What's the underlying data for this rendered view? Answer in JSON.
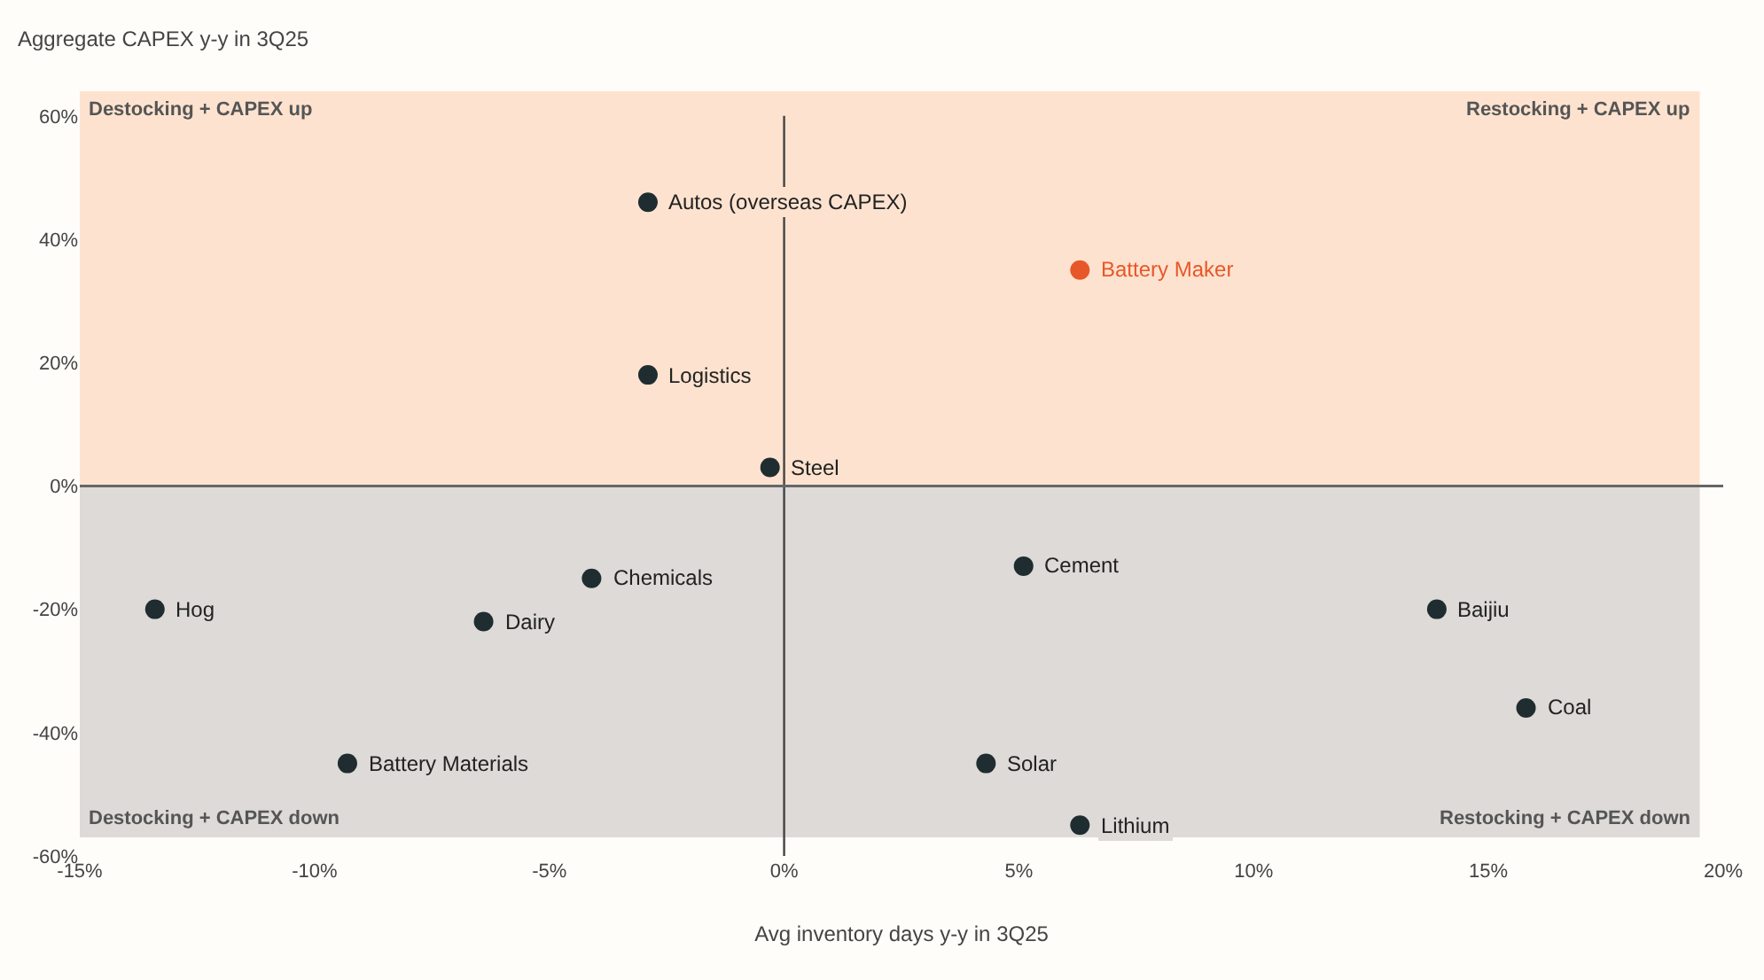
{
  "chart_data": {
    "type": "scatter",
    "xlabel": "Avg inventory days y-y in 3Q25",
    "ylabel": "Aggregate CAPEX y-y in 3Q25",
    "x": [
      -2.9,
      6.3,
      -2.9,
      -0.3,
      -4.1,
      -13.4,
      -6.4,
      -9.3,
      5.1,
      4.3,
      6.3,
      13.9,
      15.8
    ],
    "series": [
      {
        "values": [
          46,
          35,
          18,
          3,
          -15,
          -20,
          -22,
          -45,
          -13,
          -45,
          -55,
          -20,
          -36
        ],
        "colors": [
          "#1f2d30",
          "#e8572a",
          "#1f2d30",
          "#1f2d30",
          "#1f2d30",
          "#1f2d30",
          "#1f2d30",
          "#1f2d30",
          "#1f2d30",
          "#1f2d30",
          "#1f2d30",
          "#1f2d30",
          "#1f2d30"
        ]
      }
    ],
    "marker": "circle",
    "xlim": [
      -15,
      20
    ],
    "ylim": [
      -60,
      65
    ],
    "xticks": [
      {
        "value": -15,
        "label": "-15%"
      },
      {
        "value": -10,
        "label": "-10%"
      },
      {
        "value": -5,
        "label": "-5%"
      },
      {
        "value": 0,
        "label": "0%"
      },
      {
        "value": 5,
        "label": "5%"
      },
      {
        "value": 10,
        "label": "10%"
      },
      {
        "value": 15,
        "label": "15%"
      },
      {
        "value": 20,
        "label": "20%"
      }
    ],
    "yticks": [
      {
        "value": -60,
        "label": "-60%"
      },
      {
        "value": -40,
        "label": "-40%"
      },
      {
        "value": -20,
        "label": "-20%"
      },
      {
        "value": 0,
        "label": "0%"
      },
      {
        "value": 20,
        "label": "20%"
      },
      {
        "value": 40,
        "label": "40%"
      },
      {
        "value": 60,
        "label": "60%"
      }
    ],
    "grid": false,
    "bands": [
      {
        "axis": "y",
        "from": 0,
        "to": 64,
        "color": "#fde3cf"
      },
      {
        "axis": "y",
        "from": -57,
        "to": 0,
        "color": "#dddad7"
      }
    ],
    "ref_lines": [
      {
        "axis": "x",
        "value": 0,
        "color": "#444444"
      },
      {
        "axis": "y",
        "value": 0,
        "color": "#666666"
      }
    ],
    "annotations": [
      {
        "text": "Autos (overseas CAPEX)",
        "x": -2.9,
        "y": 46
      },
      {
        "text": "Battery Maker",
        "x": 6.3,
        "y": 35
      },
      {
        "text": "Logistics",
        "x": -2.9,
        "y": 18
      },
      {
        "text": "Steel",
        "x": -0.3,
        "y": 3
      },
      {
        "text": "Chemicals",
        "x": -4.1,
        "y": -15
      },
      {
        "text": "Hog",
        "x": -13.4,
        "y": -20
      },
      {
        "text": "Dairy",
        "x": -6.4,
        "y": -22
      },
      {
        "text": "Battery Materials",
        "x": -9.3,
        "y": -45
      },
      {
        "text": "Cement",
        "x": 5.1,
        "y": -13
      },
      {
        "text": "Solar",
        "x": 4.3,
        "y": -45
      },
      {
        "text": "Lithium",
        "x": 6.3,
        "y": -55
      },
      {
        "text": "Baijiu",
        "x": 13.9,
        "y": -20
      },
      {
        "text": "Coal",
        "x": 15.8,
        "y": -36
      },
      {
        "text": "Destocking + CAPEX up",
        "x": -15,
        "y": 61
      },
      {
        "text": "Restocking + CAPEX up",
        "x": 19.5,
        "y": 61
      },
      {
        "text": "Destocking + CAPEX down",
        "x": -15,
        "y": -54
      },
      {
        "text": "Restocking + CAPEX down",
        "x": 19.5,
        "y": -54
      }
    ]
  }
}
